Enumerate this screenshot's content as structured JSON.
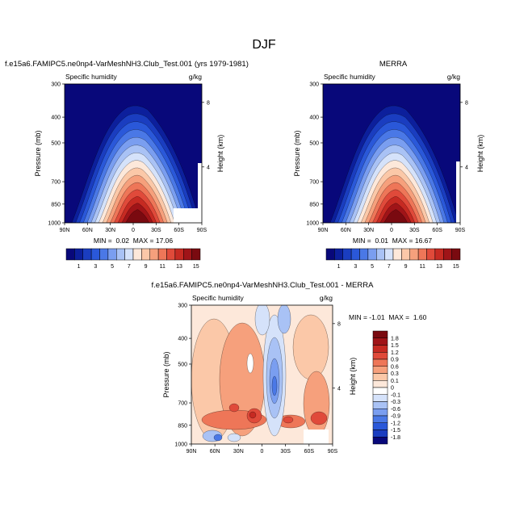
{
  "main_title": "DJF",
  "panels": [
    {
      "title": "f.e15a6.FAMIPC5.ne0np4-VarMeshNH3.Club_Test.001 (yrs 1979-1981)",
      "variable": "Specific humidity",
      "units": "g/kg",
      "stats": "MIN =  0.02  MAX = 17.06"
    },
    {
      "title": "MERRA",
      "variable": "Specific humidity",
      "units": "g/kg",
      "stats": "MIN =  0.01  MAX = 16.67"
    },
    {
      "title": "f.e15a6.FAMIPC5.ne0np4-VarMeshNH3.Club_Test.001 - MERRA",
      "variable": "Specific humidity",
      "units": "g/kg",
      "stats": "MIN = -1.01  MAX =  1.60"
    }
  ],
  "colorbar_top": {
    "labels": [
      "1",
      "3",
      "5",
      "7",
      "9",
      "11",
      "13",
      "15"
    ],
    "colors": [
      "#08087a",
      "#0c1f9c",
      "#1a3dc0",
      "#2a58d9",
      "#4a78e6",
      "#7a9ef0",
      "#a9c2f5",
      "#d5e2fa",
      "#fde8da",
      "#fbc8a8",
      "#f6a07c",
      "#ee7658",
      "#e04a3a",
      "#c62a22",
      "#a01418",
      "#7a0a10"
    ]
  },
  "colorbar_diff": {
    "labels": [
      "1.8",
      "1.5",
      "1.2",
      "0.9",
      "0.6",
      "0.3",
      "0.1",
      "0",
      "-0.1",
      "-0.3",
      "-0.6",
      "-0.9",
      "-1.2",
      "-1.5",
      "-1.8"
    ],
    "colors": [
      "#7a0a10",
      "#a01418",
      "#c62a22",
      "#e04a3a",
      "#ee7658",
      "#f6a07c",
      "#fbc8a8",
      "#fde8da",
      "#ffffff",
      "#d5e2fa",
      "#a9c2f5",
      "#7a9ef0",
      "#4a78e6",
      "#2a58d9",
      "#1a3dc0",
      "#08087a"
    ]
  },
  "chart_data": [
    {
      "type": "heatmap",
      "title": "f.e15a6.FAMIPC5.ne0np4-VarMeshNH3.Club_Test.001 (yrs 1979-1981)",
      "variable": "Specific humidity",
      "units": "g/kg",
      "xlabel": "",
      "ylabel": "Pressure (mb)",
      "y2label": "Height (km)",
      "x_ticks": [
        "90N",
        "60N",
        "30N",
        "0",
        "30S",
        "60S",
        "90S"
      ],
      "y_ticks": [
        "300",
        "400",
        "500",
        "700",
        "850",
        "1000"
      ],
      "y2_ticks": [
        "8",
        "4"
      ],
      "ylim": [
        1000,
        300
      ],
      "min": 0.02,
      "max": 17.06,
      "contour_levels": [
        1,
        2,
        3,
        4,
        5,
        6,
        7,
        8,
        9,
        10,
        11,
        12,
        13,
        14,
        15,
        16
      ]
    },
    {
      "type": "heatmap",
      "title": "MERRA",
      "variable": "Specific humidity",
      "units": "g/kg",
      "ylabel": "Pressure (mb)",
      "y2label": "Height (km)",
      "x_ticks": [
        "90N",
        "60N",
        "30N",
        "0",
        "30S",
        "60S",
        "90S"
      ],
      "y_ticks": [
        "300",
        "400",
        "500",
        "700",
        "850",
        "1000"
      ],
      "y2_ticks": [
        "8",
        "4"
      ],
      "ylim": [
        1000,
        300
      ],
      "min": 0.01,
      "max": 16.67,
      "contour_levels": [
        1,
        2,
        3,
        4,
        5,
        6,
        7,
        8,
        9,
        10,
        11,
        12,
        13,
        14,
        15,
        16
      ]
    },
    {
      "type": "heatmap",
      "title": "f.e15a6.FAMIPC5.ne0np4-VarMeshNH3.Club_Test.001 - MERRA",
      "variable": "Specific humidity",
      "units": "g/kg",
      "ylabel": "Pressure (mb)",
      "y2label": "Height (km)",
      "x_ticks": [
        "90N",
        "60N",
        "30N",
        "0",
        "30S",
        "60S",
        "90S"
      ],
      "y_ticks": [
        "300",
        "400",
        "500",
        "700",
        "850",
        "1000"
      ],
      "y2_ticks": [
        "8",
        "4"
      ],
      "ylim": [
        1000,
        300
      ],
      "min": -1.01,
      "max": 1.6,
      "contour_levels": [
        -1.8,
        -1.5,
        -1.2,
        -0.9,
        -0.6,
        -0.3,
        -0.1,
        0,
        0.1,
        0.3,
        0.6,
        0.9,
        1.2,
        1.5,
        1.8
      ]
    }
  ],
  "axes": {
    "pressure_label": "Pressure (mb)",
    "height_label": "Height (km)"
  }
}
